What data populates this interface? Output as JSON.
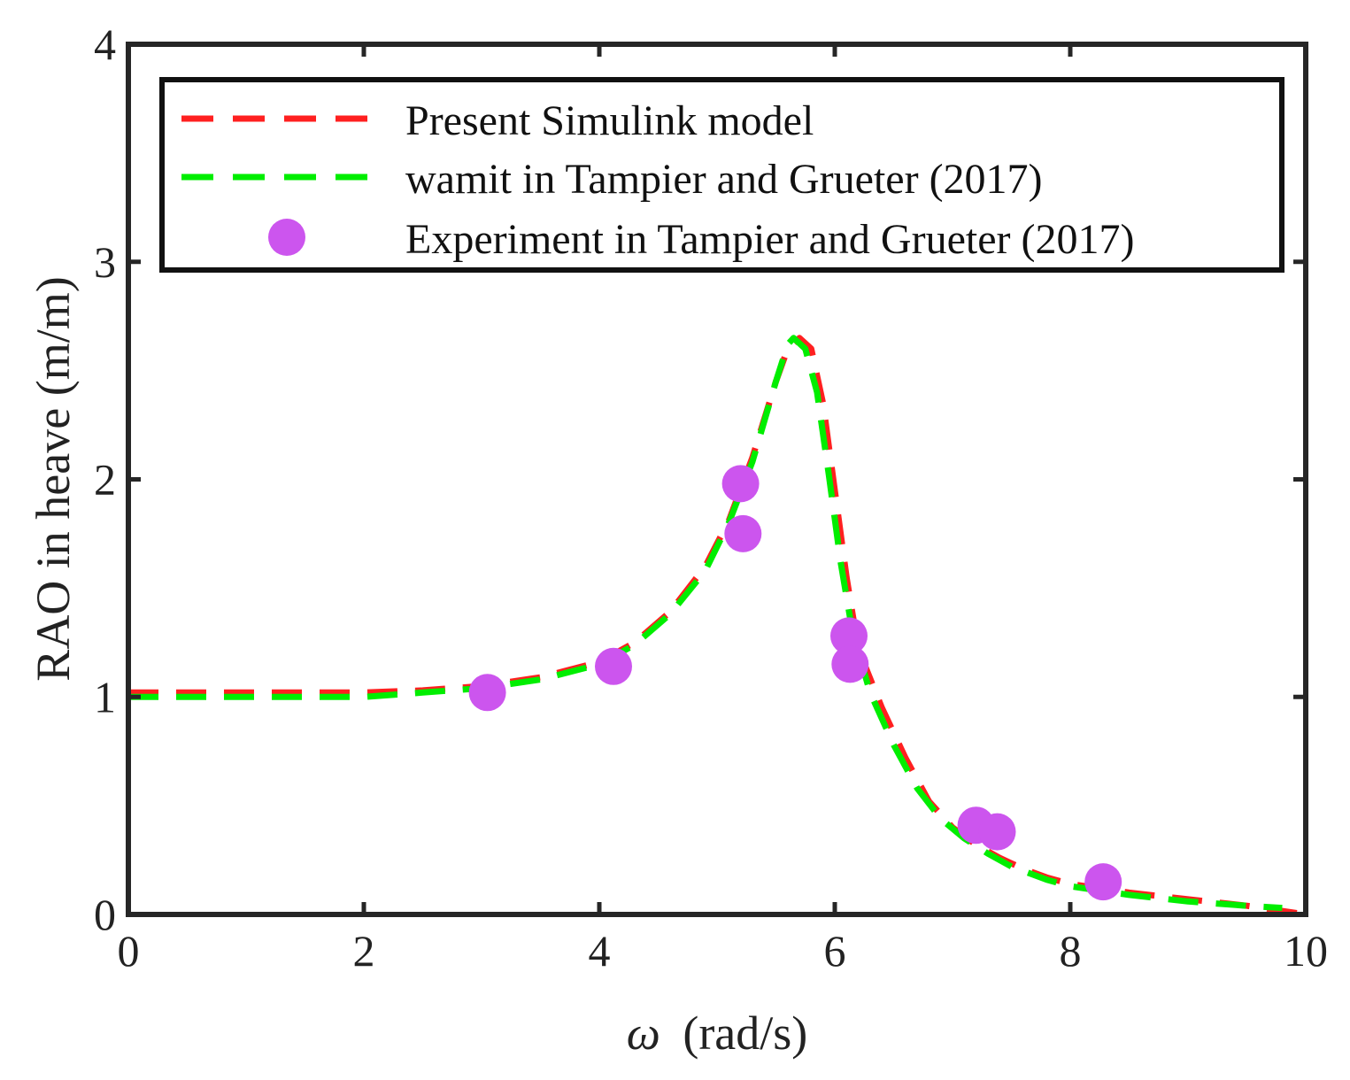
{
  "chart_data": {
    "type": "line",
    "xlabel_symbol": "ω",
    "xlabel_unit": "(rad/s)",
    "ylabel": "RAO in heave (m/m)",
    "xlim": [
      0,
      10
    ],
    "ylim": [
      0,
      4
    ],
    "xticks": [
      "0",
      "2",
      "4",
      "6",
      "8",
      "10"
    ],
    "yticks": [
      "0",
      "1",
      "2",
      "3",
      "4"
    ],
    "grid": false,
    "legend_position": "top",
    "series": [
      {
        "name": "Present Simulink model",
        "kind": "dashed-line",
        "color": "#ff2020",
        "x": [
          0,
          1,
          2,
          2.5,
          3,
          3.5,
          4,
          4.3,
          4.6,
          4.9,
          5.1,
          5.3,
          5.5,
          5.6,
          5.7,
          5.8,
          5.9,
          6.0,
          6.1,
          6.2,
          6.4,
          6.6,
          6.8,
          7.0,
          7.2,
          7.4,
          7.6,
          7.8,
          8.0,
          8.5,
          9.0,
          9.5,
          10.0
        ],
        "y": [
          1.02,
          1.02,
          1.02,
          1.03,
          1.05,
          1.09,
          1.16,
          1.25,
          1.39,
          1.6,
          1.81,
          2.1,
          2.45,
          2.6,
          2.65,
          2.6,
          2.35,
          1.95,
          1.55,
          1.22,
          0.95,
          0.72,
          0.52,
          0.4,
          0.32,
          0.26,
          0.21,
          0.17,
          0.14,
          0.1,
          0.07,
          0.04,
          0.0
        ]
      },
      {
        "name": "wamit in Tampier and Grueter (2017)",
        "kind": "dashed-line",
        "color": "#00ee00",
        "x": [
          0,
          1,
          2,
          2.5,
          3,
          3.5,
          4,
          4.3,
          4.6,
          4.9,
          5.1,
          5.3,
          5.5,
          5.6,
          5.65,
          5.75,
          5.85,
          5.95,
          6.05,
          6.15,
          6.3,
          6.5,
          6.7,
          6.9,
          7.1,
          7.3,
          7.5,
          7.8,
          8.0,
          8.5,
          9.0,
          9.5,
          9.8
        ],
        "y": [
          1.0,
          1.0,
          1.0,
          1.02,
          1.04,
          1.08,
          1.15,
          1.24,
          1.38,
          1.58,
          1.8,
          2.08,
          2.45,
          2.62,
          2.65,
          2.6,
          2.4,
          2.02,
          1.62,
          1.3,
          1.02,
          0.78,
          0.58,
          0.44,
          0.35,
          0.28,
          0.22,
          0.16,
          0.13,
          0.09,
          0.06,
          0.04,
          0.03
        ]
      },
      {
        "name": "Experiment in Tampier and Grueter (2017)",
        "kind": "markers",
        "color": "#cc55ee",
        "x": [
          3.05,
          4.12,
          5.2,
          5.22,
          6.12,
          6.13,
          7.2,
          7.38,
          8.28
        ],
        "y": [
          1.02,
          1.14,
          1.98,
          1.75,
          1.28,
          1.15,
          0.41,
          0.38,
          0.15
        ]
      }
    ]
  }
}
